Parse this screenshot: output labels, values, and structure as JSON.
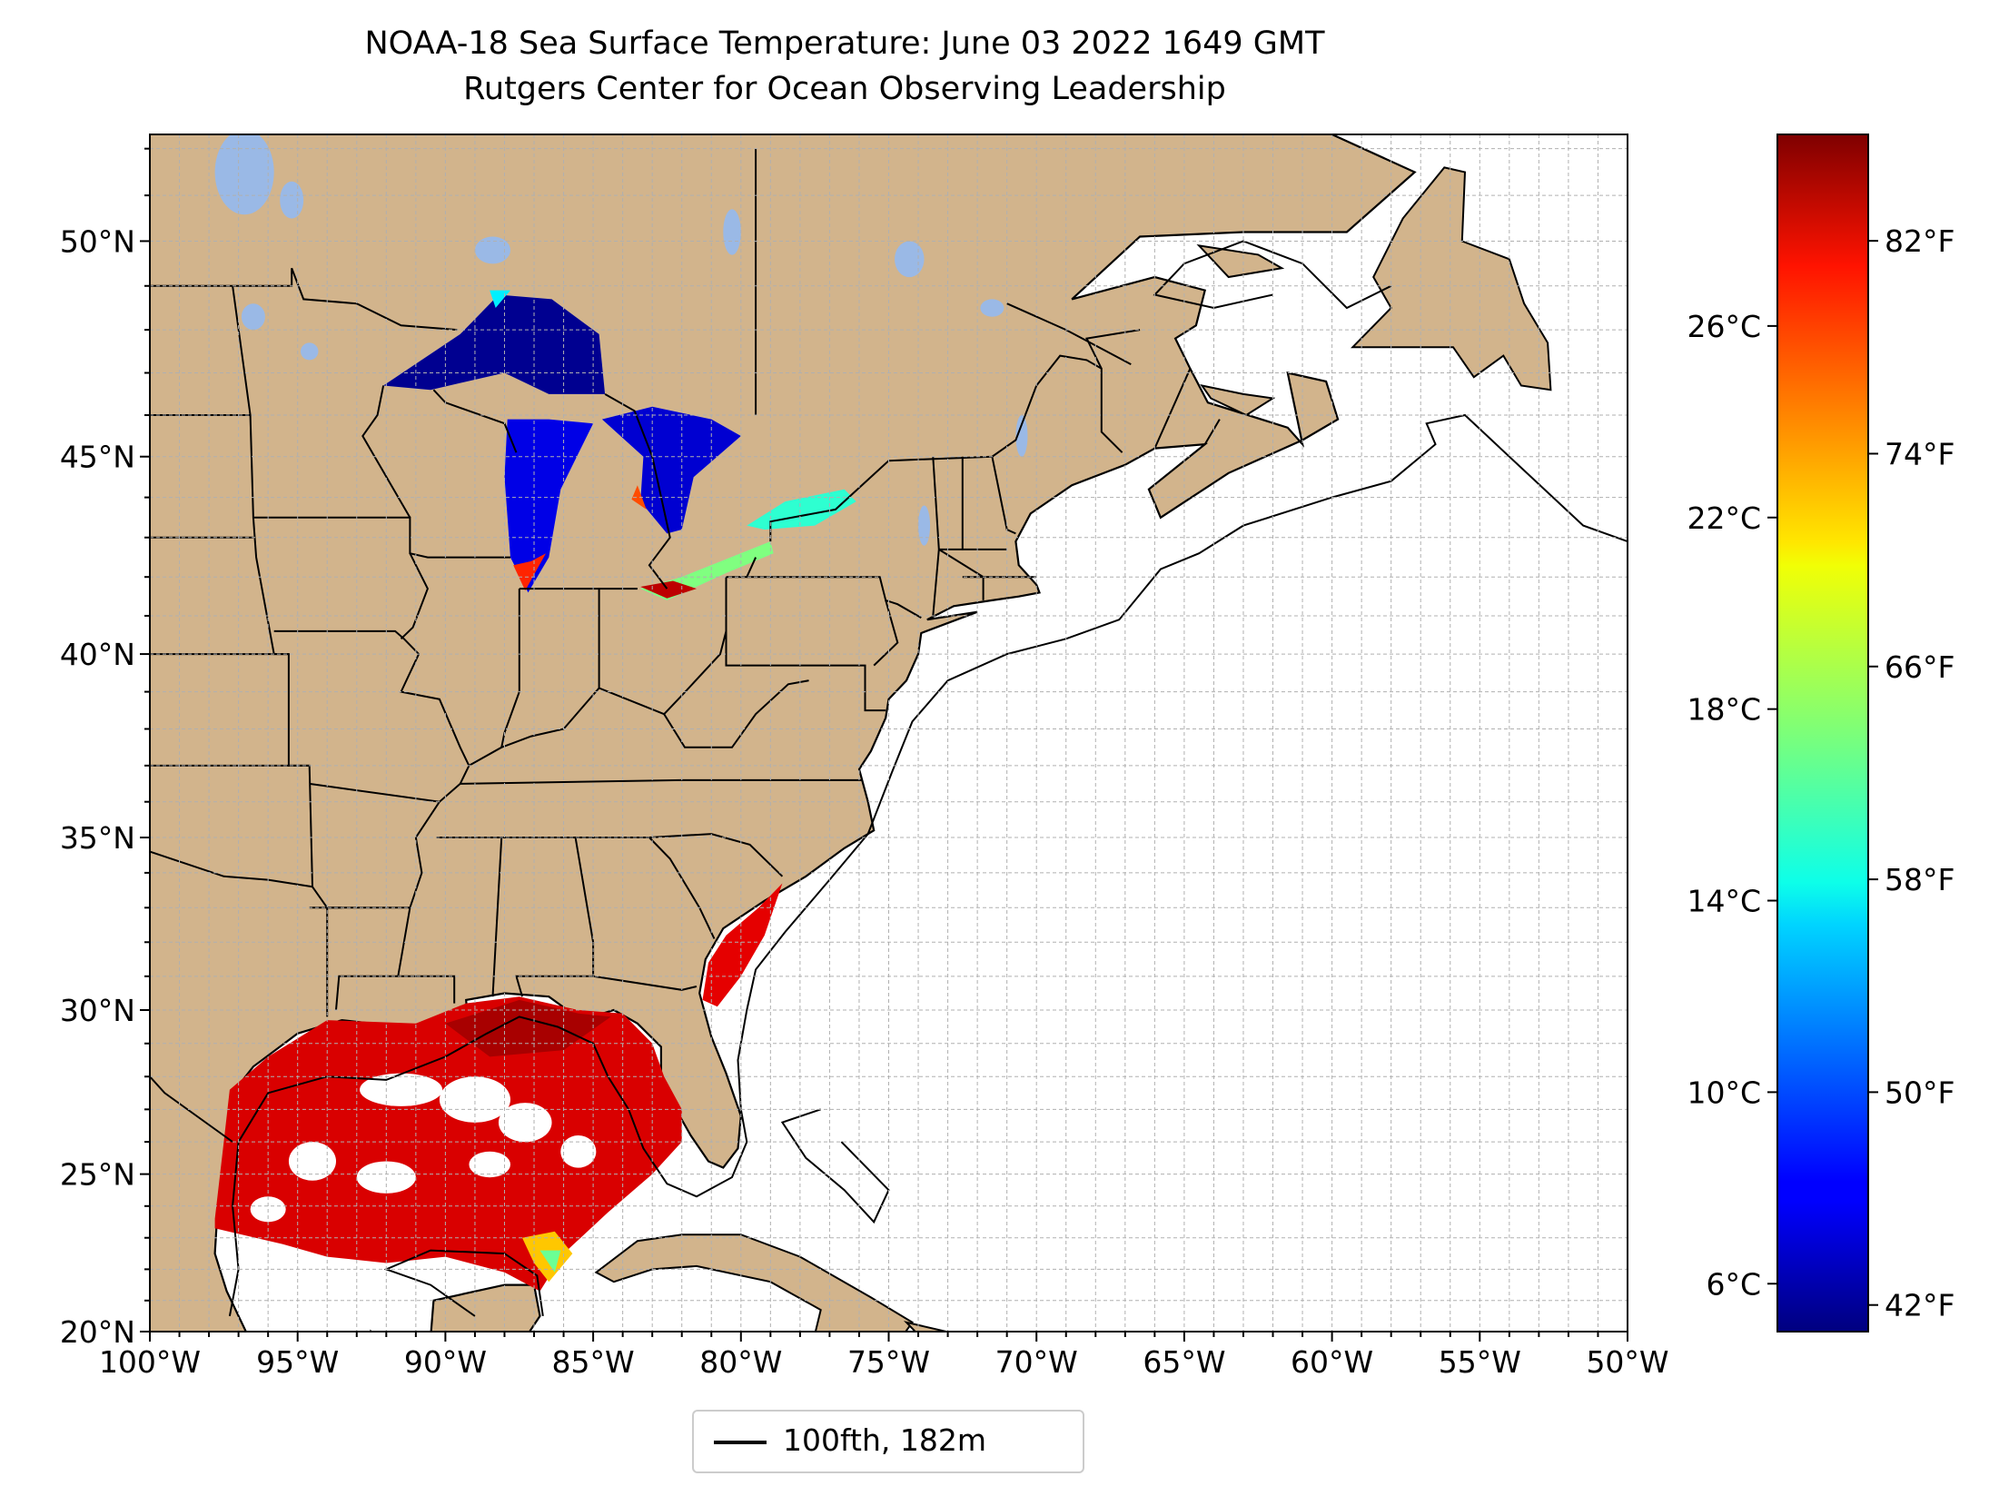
{
  "title": "NOAA-18 Sea Surface Temperature: June 03 2022 1649 GMT",
  "subtitle": "Rutgers Center for Ocean Observing Leadership",
  "map": {
    "lon_ticks": [
      {
        "value": -100,
        "label": "100°W"
      },
      {
        "value": -95,
        "label": "95°W"
      },
      {
        "value": -90,
        "label": "90°W"
      },
      {
        "value": -85,
        "label": "85°W"
      },
      {
        "value": -80,
        "label": "80°W"
      },
      {
        "value": -75,
        "label": "75°W"
      },
      {
        "value": -70,
        "label": "70°W"
      },
      {
        "value": -65,
        "label": "65°W"
      },
      {
        "value": -60,
        "label": "60°W"
      },
      {
        "value": -55,
        "label": "55°W"
      },
      {
        "value": -50,
        "label": "50°W"
      }
    ],
    "lat_ticks": [
      {
        "value": 20,
        "label": "20°N"
      },
      {
        "value": 25,
        "label": "25°N"
      },
      {
        "value": 30,
        "label": "30°N"
      },
      {
        "value": 35,
        "label": "35°N"
      },
      {
        "value": 40,
        "label": "40°N"
      },
      {
        "value": 45,
        "label": "45°N"
      },
      {
        "value": 50,
        "label": "50°N"
      }
    ],
    "lon_range": [
      -100,
      -50
    ],
    "lat_range": [
      20,
      52.3
    ],
    "land_color": "#d2b48c",
    "lake_color": "#9ab9e6",
    "grid": true
  },
  "legend": {
    "label": "100fth, 182m",
    "line_color": "#000000"
  },
  "colorbar": {
    "colormap": "jet",
    "celsius_range": [
      5,
      30
    ],
    "celsius_ticks": [
      {
        "value": 6,
        "label": "6°C"
      },
      {
        "value": 10,
        "label": "10°C"
      },
      {
        "value": 14,
        "label": "14°C"
      },
      {
        "value": 18,
        "label": "18°C"
      },
      {
        "value": 22,
        "label": "22°C"
      },
      {
        "value": 26,
        "label": "26°C"
      }
    ],
    "fahrenheit_ticks": [
      {
        "value": 42,
        "label": "42°F"
      },
      {
        "value": 50,
        "label": "50°F"
      },
      {
        "value": 58,
        "label": "58°F"
      },
      {
        "value": 66,
        "label": "66°F"
      },
      {
        "value": 74,
        "label": "74°F"
      },
      {
        "value": 82,
        "label": "82°F"
      }
    ]
  }
}
